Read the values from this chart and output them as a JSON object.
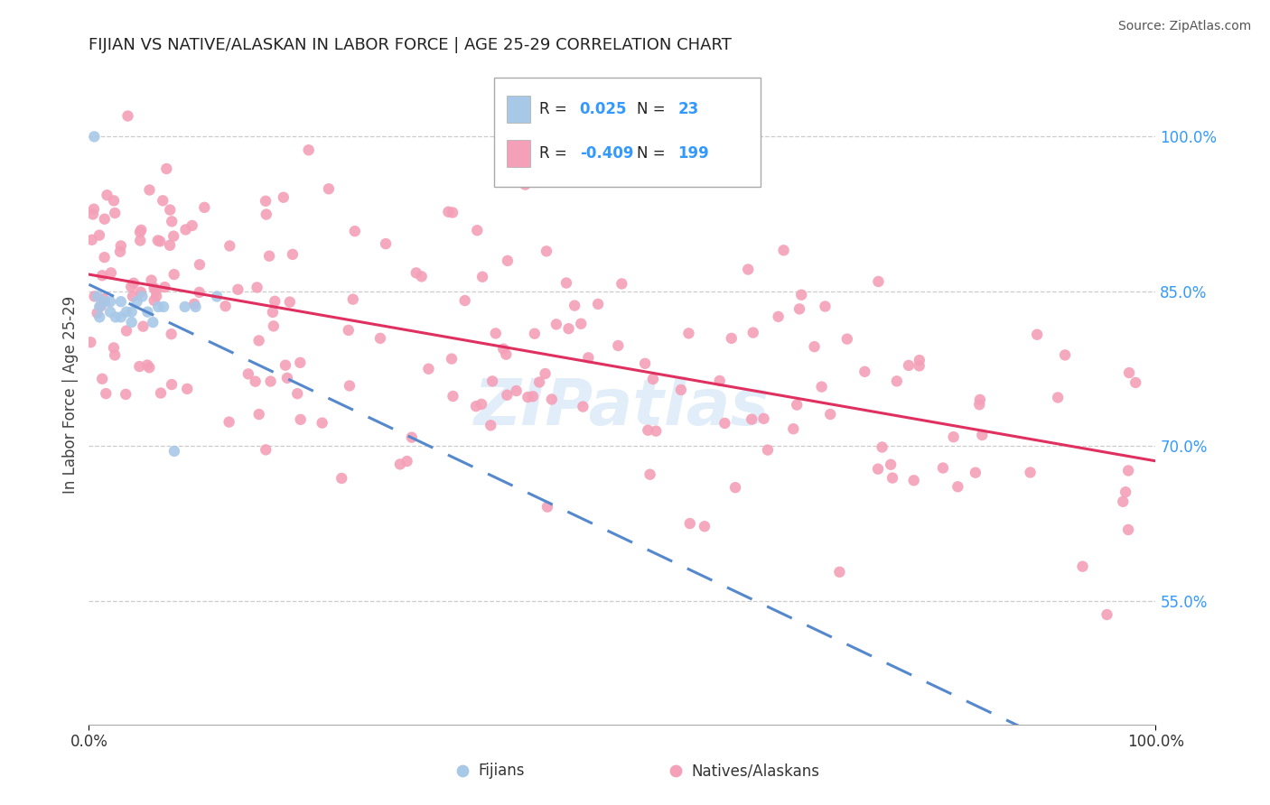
{
  "title": "FIJIAN VS NATIVE/ALASKAN IN LABOR FORCE | AGE 25-29 CORRELATION CHART",
  "source": "Source: ZipAtlas.com",
  "ylabel": "In Labor Force | Age 25-29",
  "ylabel_right_ticks": [
    0.55,
    0.7,
    0.85,
    1.0
  ],
  "ylabel_right_labels": [
    "55.0%",
    "70.0%",
    "85.0%",
    "100.0%"
  ],
  "xlim": [
    0.0,
    1.0
  ],
  "ylim": [
    0.43,
    1.07
  ],
  "fijian_color": "#a8c8e8",
  "native_color": "#f4a0b8",
  "fijian_R": 0.025,
  "fijian_N": 23,
  "native_R": -0.409,
  "native_N": 199,
  "trend_color_fijian": "#5588cc",
  "trend_color_native": "#e03060",
  "grid_color": "#cccccc",
  "background_color": "#ffffff",
  "legend_color": "#3399ff",
  "marker_size": 80,
  "fijian_seed": 77,
  "native_seed": 42,
  "watermark_text": "ZIPatlas",
  "watermark_color": "#aaccee",
  "watermark_alpha": 0.35
}
